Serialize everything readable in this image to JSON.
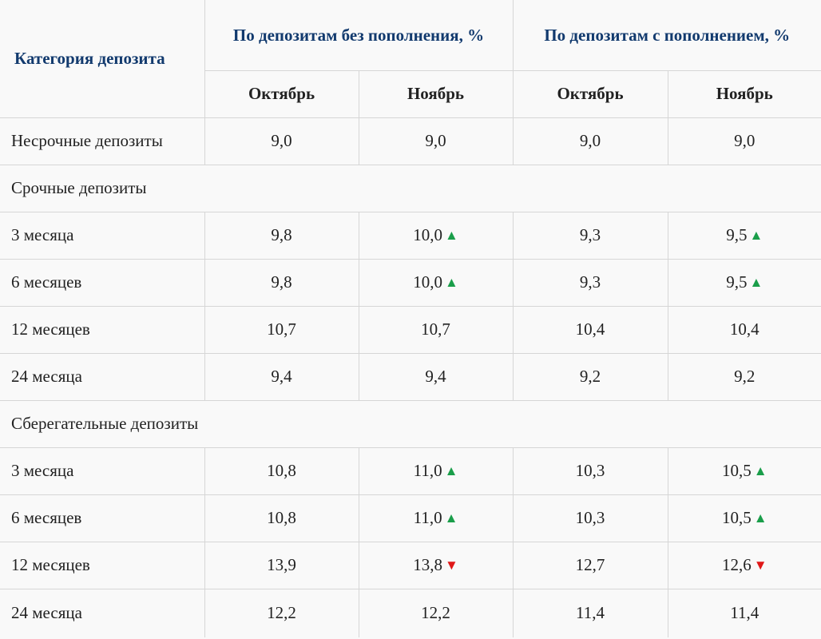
{
  "header": {
    "category": "Категория депозита",
    "group_without": "По депозитам без пополнения, %",
    "group_with": "По депозитам с пополнением, %",
    "months": [
      "Октябрь",
      "Ноябрь",
      "Октябрь",
      "Ноябрь"
    ]
  },
  "colors": {
    "header_text": "#123a6e",
    "arrow_up": "#1a9e4a",
    "arrow_down": "#e01818"
  },
  "rows": [
    {
      "type": "data",
      "label": "Несрочные депозиты",
      "values": [
        "9,0",
        "9,0",
        "9,0",
        "9,0"
      ],
      "trends": [
        "",
        "",
        "",
        ""
      ]
    },
    {
      "type": "section",
      "label": "Срочные депозиты"
    },
    {
      "type": "data",
      "label": "3 месяца",
      "values": [
        "9,8",
        "10,0",
        "9,3",
        "9,5"
      ],
      "trends": [
        "",
        "up",
        "",
        "up"
      ]
    },
    {
      "type": "data",
      "label": "6 месяцев",
      "values": [
        "9,8",
        "10,0",
        "9,3",
        "9,5"
      ],
      "trends": [
        "",
        "up",
        "",
        "up"
      ]
    },
    {
      "type": "data",
      "label": "12 месяцев",
      "values": [
        "10,7",
        "10,7",
        "10,4",
        "10,4"
      ],
      "trends": [
        "",
        "",
        "",
        ""
      ]
    },
    {
      "type": "data",
      "label": "24 месяца",
      "values": [
        "9,4",
        "9,4",
        "9,2",
        "9,2"
      ],
      "trends": [
        "",
        "",
        "",
        ""
      ]
    },
    {
      "type": "section",
      "label": "Сберегательные депозиты"
    },
    {
      "type": "data",
      "label": "3 месяца",
      "values": [
        "10,8",
        "11,0",
        "10,3",
        "10,5"
      ],
      "trends": [
        "",
        "up",
        "",
        "up"
      ]
    },
    {
      "type": "data",
      "label": "6 месяцев",
      "values": [
        "10,8",
        "11,0",
        "10,3",
        "10,5"
      ],
      "trends": [
        "",
        "up",
        "",
        "up"
      ]
    },
    {
      "type": "data",
      "label": "12 месяцев",
      "values": [
        "13,9",
        "13,8",
        "12,7",
        "12,6"
      ],
      "trends": [
        "",
        "down",
        "",
        "down"
      ]
    },
    {
      "type": "data",
      "label": "24 месяца",
      "values": [
        "12,2",
        "12,2",
        "11,4",
        "11,4"
      ],
      "trends": [
        "",
        "",
        "",
        ""
      ]
    }
  ]
}
